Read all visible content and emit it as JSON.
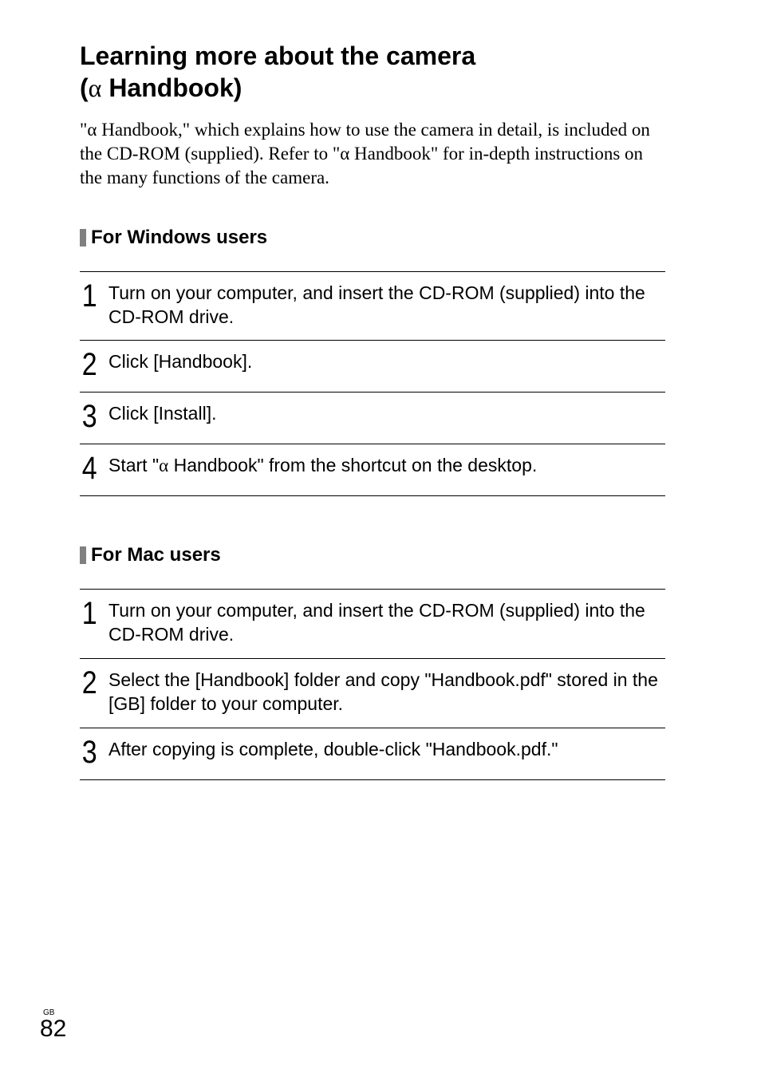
{
  "title": {
    "line1": "Learning more about the camera",
    "line2_pre": "(",
    "line2_alpha": "α",
    "line2_post": " Handbook)"
  },
  "intro": {
    "pre1": "\"",
    "alpha1": "α",
    "mid1": " Handbook,\" which explains how to use the camera in detail, is included on the CD-ROM (supplied). Refer to \"",
    "alpha2": "α",
    "post": " Handbook\" for in-depth instructions on the many functions of the camera."
  },
  "sections": {
    "windows": {
      "heading": "For Windows users",
      "steps": [
        {
          "num": "1",
          "text": "Turn on your computer, and insert the CD-ROM (supplied) into the CD-ROM drive."
        },
        {
          "num": "2",
          "text": "Click [Handbook]."
        },
        {
          "num": "3",
          "text": "Click [Install]."
        },
        {
          "num": "4",
          "pre": "Start \"",
          "alpha": "α",
          "post": " Handbook\" from the shortcut on the desktop."
        }
      ]
    },
    "mac": {
      "heading": "For Mac users",
      "steps": [
        {
          "num": "1",
          "text": "Turn on your computer, and insert the CD-ROM (supplied) into the CD-ROM drive."
        },
        {
          "num": "2",
          "text": "Select the [Handbook] folder and copy \"Handbook.pdf\" stored in the [GB] folder to your computer."
        },
        {
          "num": "3",
          "text": "After copying is complete, double-click \"Handbook.pdf.\""
        }
      ]
    }
  },
  "footer": {
    "gb": "GB",
    "page": "82"
  }
}
